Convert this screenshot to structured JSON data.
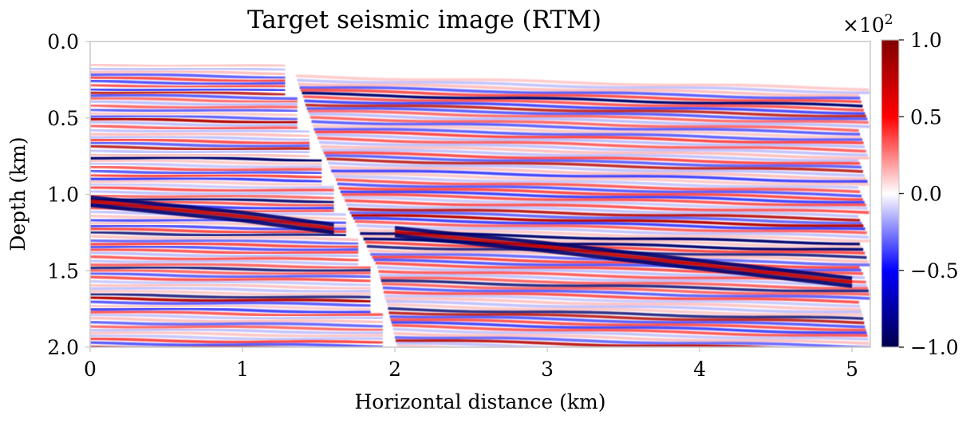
{
  "chart_data": {
    "type": "heatmap",
    "title": "Target seismic image (RTM)",
    "xlabel": "Horizontal distance (km)",
    "ylabel": "Depth (km)",
    "xlim": [
      0,
      5.12
    ],
    "ylim": [
      2.0,
      0.0
    ],
    "x_ticks": [
      0,
      1,
      2,
      3,
      4,
      5
    ],
    "x_tick_labels": [
      "0",
      "1",
      "2",
      "3",
      "4",
      "5"
    ],
    "y_ticks": [
      0.0,
      0.5,
      1.0,
      1.5,
      2.0
    ],
    "y_tick_labels": [
      "0.0",
      "0.5",
      "1.0",
      "1.5",
      "2.0"
    ],
    "grid": false,
    "colormap": "seismic",
    "colorbar": {
      "range": [
        -1.0,
        1.0
      ],
      "ticks": [
        1.0,
        0.5,
        0.0,
        -0.5,
        -1.0
      ],
      "tick_labels": [
        "1.0",
        "0.5",
        "0.0",
        "−0.5",
        "−1.0"
      ],
      "scale_label": "×10",
      "scale_exponent": "2"
    },
    "features": {
      "water_bottom_depth_km": 0.12,
      "fault_trace_km": [
        [
          1.3,
          0.12
        ],
        [
          1.45,
          0.55
        ],
        [
          1.65,
          1.0
        ],
        [
          1.85,
          1.4
        ],
        [
          2.0,
          2.0
        ]
      ],
      "strong_reflector_left_km": [
        [
          0.0,
          1.02
        ],
        [
          1.0,
          1.12
        ],
        [
          1.6,
          1.2
        ]
      ],
      "strong_reflector_right_km": [
        [
          2.0,
          1.22
        ],
        [
          3.0,
          1.32
        ],
        [
          5.0,
          1.55
        ]
      ]
    }
  },
  "colors": {
    "axis_frame": "#cccccc",
    "text": "#262626",
    "cmap_min": "#00004c",
    "cmap_neg": "#0000ff",
    "cmap_zero": "#ffffff",
    "cmap_pos": "#ff0000",
    "cmap_max": "#800000"
  }
}
